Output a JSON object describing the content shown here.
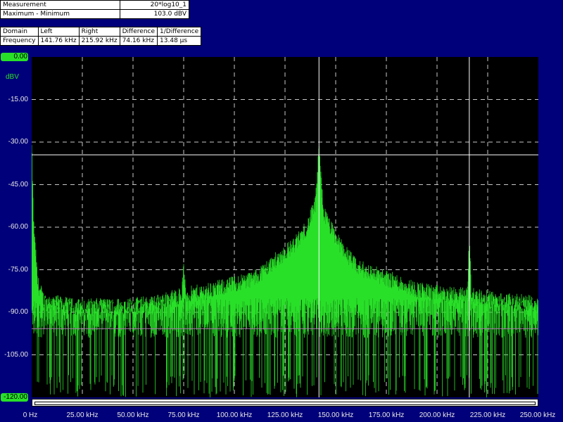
{
  "measurement": {
    "header_label": "Measurement",
    "header_value": "20*log10_1",
    "row_label": "Maximum - Minimum",
    "row_value": "103.0 dBV"
  },
  "cursor_table": {
    "headers": [
      "Domain",
      "Left",
      "Right",
      "Difference",
      "1/Difference"
    ],
    "row": [
      "Frequency",
      "141.76 kHz",
      "215.92 kHz",
      "74.16 kHz",
      "13.48 µs"
    ]
  },
  "colors": {
    "background": "#00007a",
    "plot_background": "#000000",
    "trace": "#29e029",
    "grid": "#c8c8c8",
    "cursor_line": "#ffffff",
    "marker_line": "#b070b0"
  },
  "chart_data": {
    "type": "line",
    "xlabel": "",
    "ylabel": "dBV",
    "xlim": [
      0,
      250000
    ],
    "ylim": [
      -120,
      0
    ],
    "x_tick_labels": [
      "0 Hz",
      "25.00 kHz",
      "50.00 kHz",
      "75.00 kHz",
      "100.00 kHz",
      "125.00 kHz",
      "150.00 kHz",
      "175.00 kHz",
      "200.00 kHz",
      "225.00 kHz",
      "250.00 kHz"
    ],
    "y_tick_labels": [
      "0.00",
      "-15.00",
      "-30.00",
      "-45.00",
      "-60.00",
      "-75.00",
      "-90.00",
      "-105.00",
      "-120.00"
    ],
    "y_ticks": [
      0,
      -15,
      -30,
      -45,
      -60,
      -75,
      -90,
      -105,
      -120
    ],
    "grid": true,
    "cursors": {
      "left_hz": 141760,
      "right_hz": 215920
    },
    "horizontal_markers_dbv": [
      -34.5,
      -95.8
    ],
    "series": [
      {
        "envelope_points": [
          [
            0,
            -32
          ],
          [
            1000,
            -60
          ],
          [
            3000,
            -80
          ],
          [
            6000,
            -86
          ],
          [
            20000,
            -88
          ],
          [
            40000,
            -88
          ],
          [
            60000,
            -87
          ],
          [
            74000,
            -84
          ],
          [
            75000,
            -75
          ],
          [
            76000,
            -84
          ],
          [
            90000,
            -82
          ],
          [
            100000,
            -80
          ],
          [
            110000,
            -78
          ],
          [
            120000,
            -72
          ],
          [
            130000,
            -66
          ],
          [
            136000,
            -60
          ],
          [
            140000,
            -52
          ],
          [
            141760,
            -33
          ],
          [
            144000,
            -55
          ],
          [
            150000,
            -64
          ],
          [
            160000,
            -74
          ],
          [
            175000,
            -78
          ],
          [
            190000,
            -82
          ],
          [
            205000,
            -84
          ],
          [
            215000,
            -84
          ],
          [
            215920,
            -64
          ],
          [
            217000,
            -84
          ],
          [
            230000,
            -86
          ],
          [
            250000,
            -87
          ]
        ],
        "floor_dbv": -95,
        "noise_min_dbv": -120
      }
    ]
  }
}
